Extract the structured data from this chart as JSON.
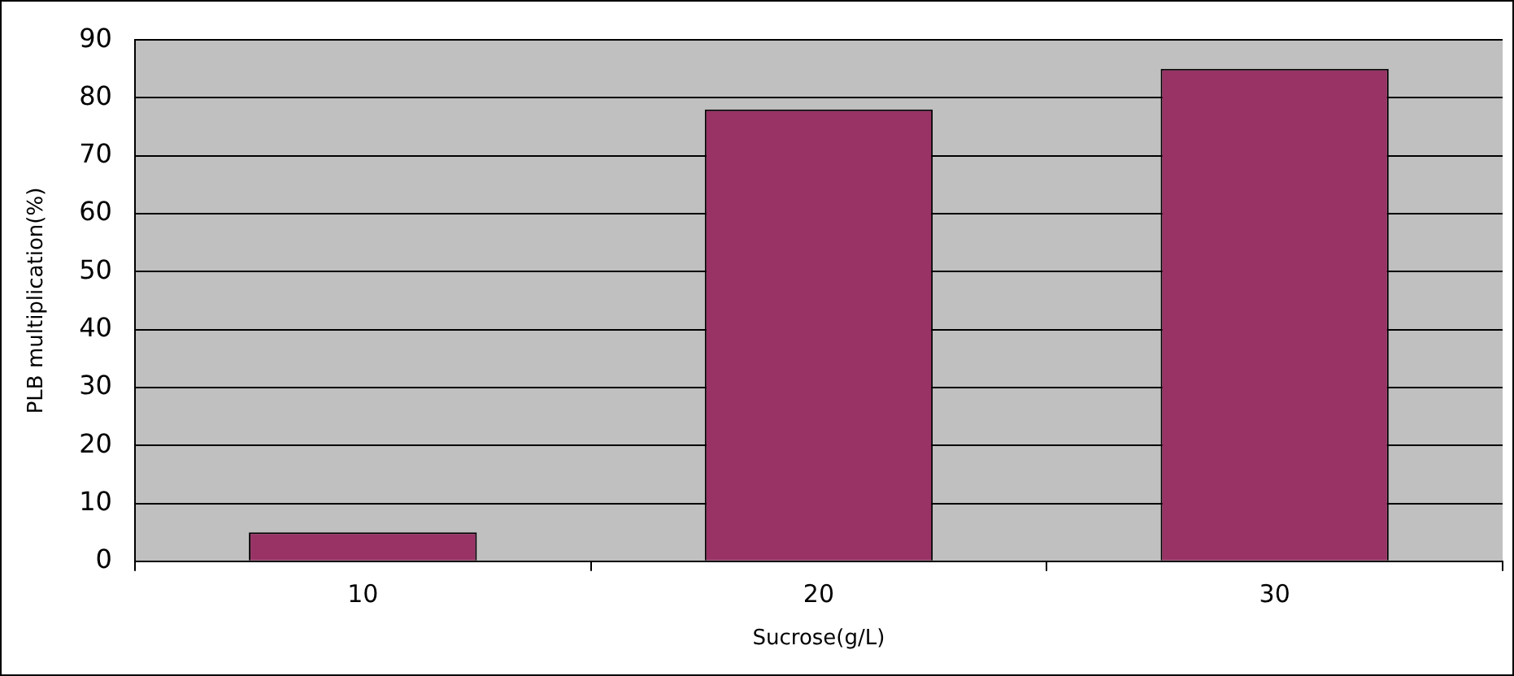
{
  "chart_data": {
    "type": "bar",
    "xlabel": "Sucrose(g/L)",
    "ylabel": "PLB multiplication(%)",
    "categories": [
      "10",
      "20",
      "30"
    ],
    "values": [
      5,
      78,
      85
    ],
    "color": "#993366",
    "ylim": [
      0,
      90
    ],
    "yticks": [
      0,
      10,
      20,
      30,
      40,
      50,
      60,
      70,
      80,
      90
    ],
    "grid": "y",
    "legend": false
  }
}
